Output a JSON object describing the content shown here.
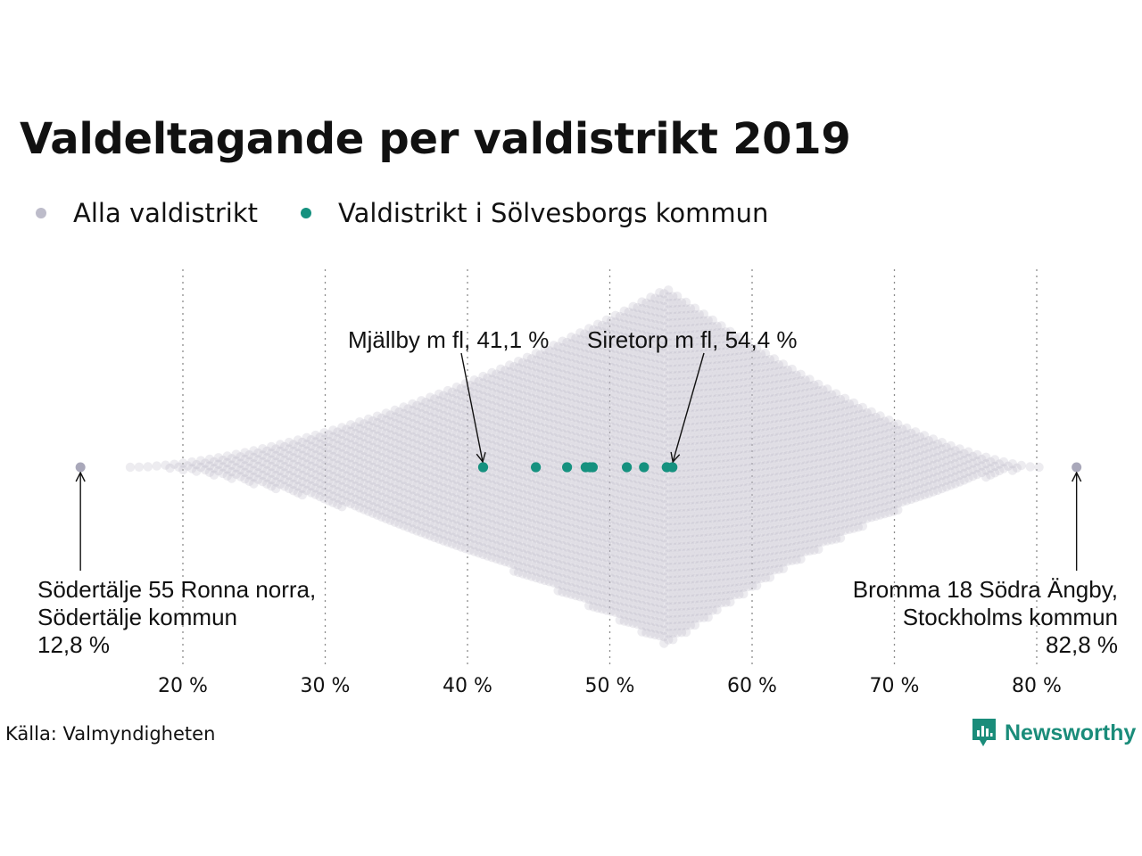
{
  "title": "Valdeltagande per valdistrikt 2019",
  "legend": [
    {
      "label": "Alla valdistrikt",
      "color": "#bdbcca"
    },
    {
      "label": "Valdistrikt i Sölvesborgs kommun",
      "color": "#15917f"
    }
  ],
  "chart_data": {
    "type": "scatter",
    "subtype": "beeswarm",
    "x_unit": "%",
    "xlim": [
      10,
      85
    ],
    "x_ticks": [
      20,
      30,
      40,
      50,
      60,
      70,
      80
    ],
    "x_tick_labels": [
      "20 %",
      "30 %",
      "40 %",
      "50 %",
      "60 %",
      "70 %",
      "80 %"
    ],
    "grid": "vertical dotted",
    "background_distribution": {
      "name": "Alla valdistrikt",
      "min": 12.8,
      "max": 82.8,
      "mode": 54
    },
    "series": [
      {
        "name": "Valdistrikt i Sölvesborgs kommun",
        "values": [
          41.1,
          44.8,
          47.0,
          48.3,
          48.6,
          48.8,
          51.2,
          52.4,
          54.0,
          54.4
        ]
      }
    ],
    "annotations": [
      {
        "lines": [
          "Mjällby m fl, 41,1 %"
        ],
        "x": 41.1
      },
      {
        "lines": [
          "Siretorp m fl, 54,4 %"
        ],
        "x": 54.4
      },
      {
        "lines": [
          "Södertälje 55 Ronna norra,",
          "Södertälje kommun",
          "12,8 %"
        ],
        "x": 12.8
      },
      {
        "lines": [
          "Bromma 18 Södra Ängby,",
          "Stockholms kommun",
          "82,8 %"
        ],
        "x": 82.8
      }
    ]
  },
  "source": "Källa: Valmyndigheten",
  "brand": {
    "name": "Newsworthy",
    "icon": "bar-chart-badge-icon"
  }
}
